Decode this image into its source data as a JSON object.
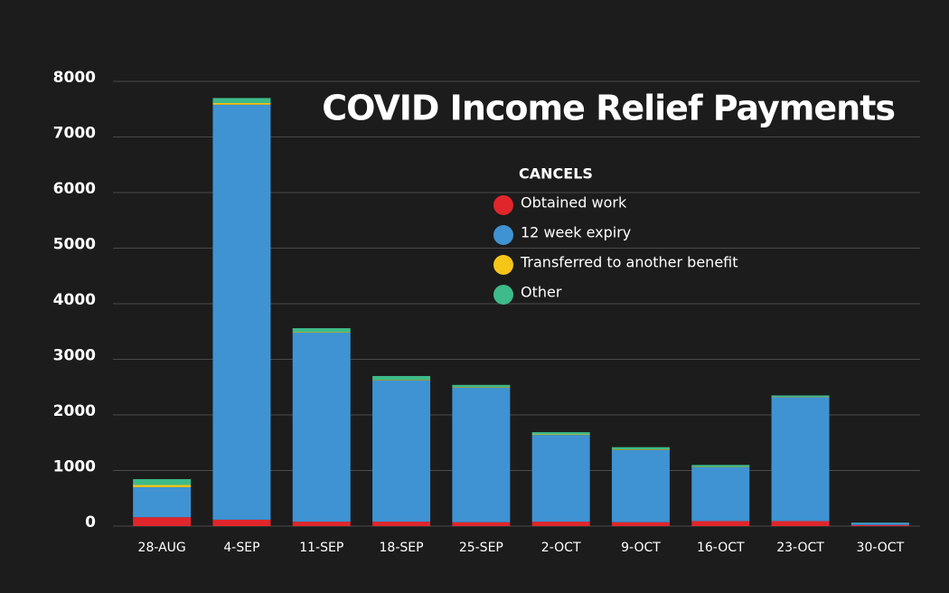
{
  "chart_data": {
    "type": "stacked-bar",
    "title": "COVID Income Relief Payments",
    "legend_title": "CANCELS",
    "categories": [
      "28-AUG",
      "4-SEP",
      "11-SEP",
      "18-SEP",
      "25-SEP",
      "2-OCT",
      "9-OCT",
      "16-OCT",
      "23-OCT",
      "30-OCT"
    ],
    "series": [
      {
        "name": "Obtained work",
        "color": "#e0262b",
        "values": [
          160,
          115,
          80,
          80,
          70,
          80,
          70,
          90,
          90,
          20
        ]
      },
      {
        "name": "12 week expiry",
        "color": "#3f93d2",
        "values": [
          540,
          7465,
          3400,
          2540,
          2420,
          1560,
          1300,
          970,
          2230,
          40
        ]
      },
      {
        "name": "Transferred to another benefit",
        "color": "#f5c518",
        "values": [
          40,
          30,
          10,
          10,
          10,
          10,
          10,
          5,
          5,
          0
        ]
      },
      {
        "name": "Other",
        "color": "#3dbb8a",
        "values": [
          105,
          90,
          70,
          70,
          40,
          40,
          40,
          35,
          25,
          5
        ]
      }
    ],
    "ylim": [
      0,
      8000
    ],
    "yticks": [
      0,
      1000,
      2000,
      3000,
      4000,
      5000,
      6000,
      7000,
      8000
    ],
    "grid": true
  }
}
